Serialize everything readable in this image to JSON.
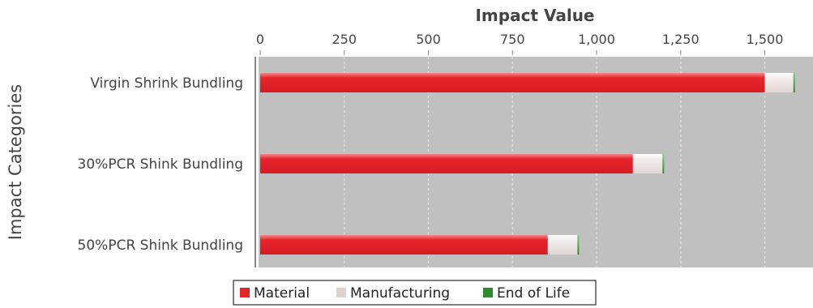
{
  "chart_data": {
    "type": "bar",
    "orientation": "horizontal",
    "stacked": true,
    "xlabel": "Impact Value",
    "ylabel": "Impact Categories",
    "xlim": [
      0,
      1650
    ],
    "x_ticks": [
      0,
      250,
      500,
      750,
      1000,
      1250,
      1500
    ],
    "x_tick_labels": [
      "0",
      "250",
      "500",
      "750",
      "1,000",
      "1,250",
      "1,500"
    ],
    "x_axis_position": "top",
    "grid": true,
    "legend_position": "bottom",
    "categories": [
      "Virgin Shrink Bundling",
      "30%PCR Shink Bundling",
      "50%PCR Shink Bundling"
    ],
    "series": [
      {
        "name": "Material",
        "color": "#e8242b",
        "values": [
          1500,
          1108,
          855
        ]
      },
      {
        "name": "Manufacturing",
        "color": "#e6dedc",
        "values": [
          85,
          88,
          88
        ]
      },
      {
        "name": "End of Life",
        "color": "#3a9a3a",
        "values": [
          4,
          4,
          4
        ]
      }
    ]
  }
}
